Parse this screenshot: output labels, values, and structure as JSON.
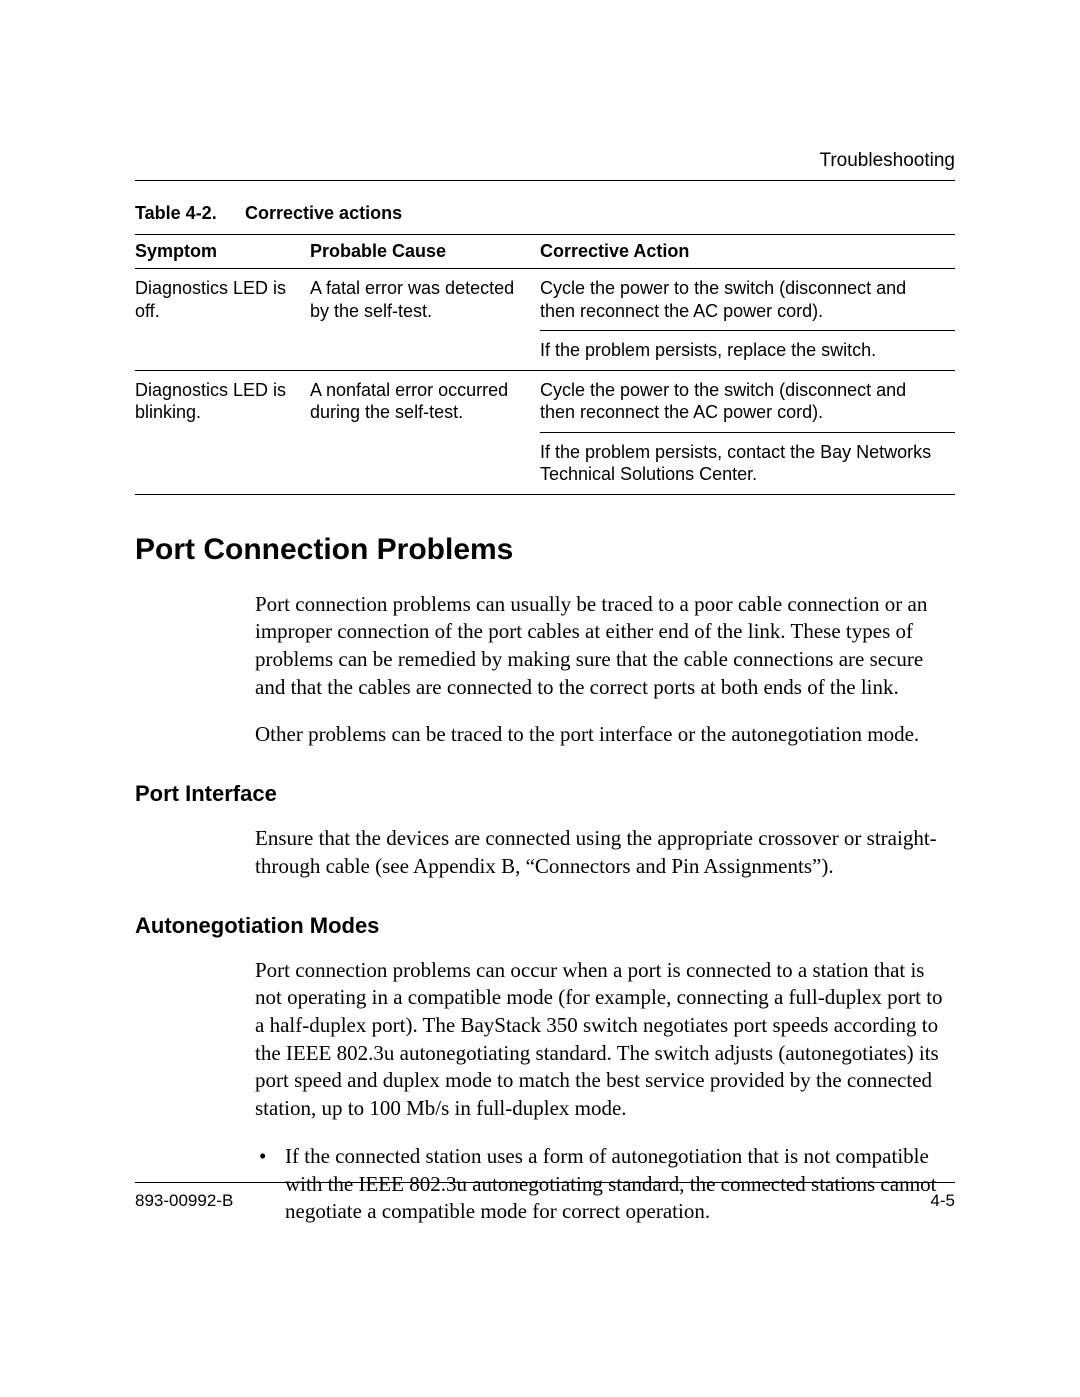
{
  "running_head": "Troubleshooting",
  "table": {
    "caption_num": "Table 4-2.",
    "caption_title": "Corrective actions",
    "columns": [
      "Symptom",
      "Probable Cause",
      "Corrective Action"
    ],
    "rows": [
      {
        "symptom": "Diagnostics LED is off.",
        "cause": "A fatal error was detected by the self-test.",
        "action_a": "Cycle the power to the switch (disconnect and then reconnect the AC power cord).",
        "action_b": "If the problem persists, replace the switch."
      },
      {
        "symptom": "Diagnostics LED is blinking.",
        "cause": "A nonfatal error occurred during the self-test.",
        "action_a": "Cycle the power to the switch (disconnect and then reconnect the AC power cord).",
        "action_b": "If the problem persists, contact the Bay Networks Technical Solutions Center."
      }
    ]
  },
  "h1": "Port Connection Problems",
  "para1": "Port connection problems can usually be traced to a poor cable connection or an improper connection of the port cables at either end of the link. These types of problems can be remedied by making sure that the cable connections are secure and that the cables are connected to the correct ports at both ends of the link.",
  "para2": "Other problems can be traced to the port interface or the autonegotiation mode.",
  "h2a": "Port Interface",
  "para3": "Ensure that the devices are connected using the appropriate crossover or straight-through cable (see Appendix B, “Connectors and Pin Assignments”).",
  "h2b": "Autonegotiation Modes",
  "para4": "Port connection problems can occur when a port is connected to a station that is not operating in a compatible mode (for example, connecting a full-duplex port to a half-duplex port). The BayStack 350 switch negotiates port speeds according to the IEEE 802.3u autonegotiating standard. The switch adjusts (autonegotiates) its port speed and duplex mode to match the best service provided by the connected station, up to 100 Mb/s in full-duplex mode.",
  "bullet1": "If the connected station uses a form of autonegotiation that is not compatible with the IEEE 802.3u autonegotiating standard, the connected stations cannot negotiate a compatible mode for correct operation.",
  "footer_left": "893-00992-B",
  "footer_right": "4-5"
}
